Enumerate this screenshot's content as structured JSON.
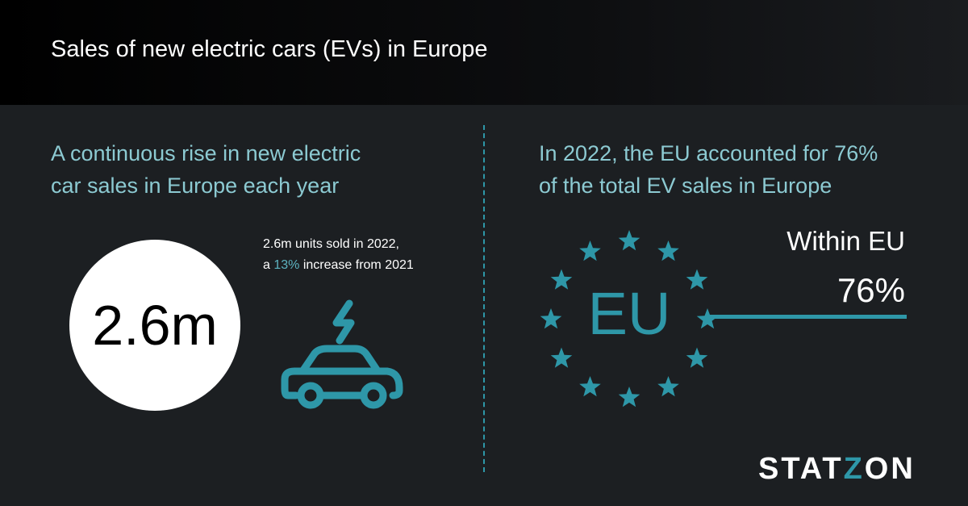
{
  "header": {
    "title": "Sales of new electric cars (EVs) in Europe"
  },
  "left": {
    "headline_line1": "A continuous rise in new electric",
    "headline_line2": "car sales in Europe each year",
    "big_value": "2.6m",
    "note_line1": "2.6m units sold in 2022,",
    "note_prefix": "a ",
    "note_highlight": "13%",
    "note_suffix": " increase from 2021",
    "icon": "electric-car-icon"
  },
  "right": {
    "headline_line1": "In 2022, the EU accounted for 76%",
    "headline_line2": "of the total EV sales in Europe",
    "eu_label": "EU",
    "share_label": "Within EU",
    "share_value": "76%",
    "share_fraction": 0.76,
    "icon": "eu-stars-icon"
  },
  "brand": {
    "logo_a": "STAT",
    "logo_z": "Z",
    "logo_b": "ON"
  },
  "colors": {
    "accent": "#2e97a8",
    "headline": "#8ccad2",
    "background": "#1c1f22"
  }
}
